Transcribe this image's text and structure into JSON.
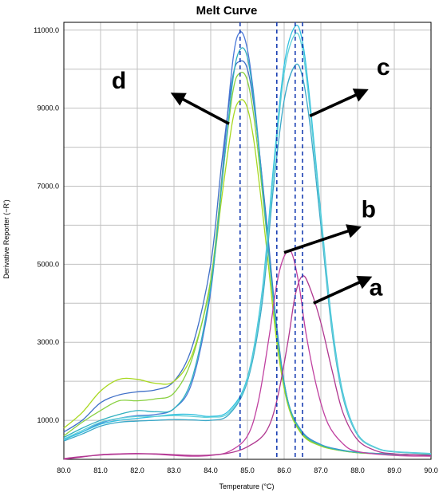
{
  "chart_data": {
    "type": "line",
    "title": "Melt Curve",
    "xlabel": "Temperature (°C)",
    "ylabel": "Derivative Reporter (−R')",
    "xlim": [
      80.0,
      90.0
    ],
    "ylim": [
      0,
      11200
    ],
    "x_ticks": [
      "80.0",
      "81.0",
      "82.0",
      "83.0",
      "84.0",
      "85.0",
      "86.0",
      "87.0",
      "88.0",
      "89.0",
      "90.0"
    ],
    "y_ticks": [
      "1000.0",
      "3000.0",
      "5000.0",
      "7000.0",
      "9000.0",
      "11000.0"
    ],
    "y_tick_values": [
      1000,
      3000,
      5000,
      7000,
      9000,
      11000
    ],
    "grid": true,
    "background_color": "#ffffff",
    "grid_color": "#c0c0c0",
    "dashed_line_color": "#1a3fb3",
    "annotation_arrow_color": "#000000",
    "vertical_dashed_lines": [
      84.8,
      85.8,
      86.3,
      86.5
    ],
    "series": [
      {
        "color": "#4a78d8",
        "points": [
          [
            80.0,
            520
          ],
          [
            80.5,
            700
          ],
          [
            81.0,
            930
          ],
          [
            81.5,
            1050
          ],
          [
            82.0,
            1120
          ],
          [
            82.5,
            1150
          ],
          [
            83.0,
            1300
          ],
          [
            83.5,
            2000
          ],
          [
            84.0,
            4300
          ],
          [
            84.3,
            7200
          ],
          [
            84.6,
            10200
          ],
          [
            84.8,
            10950
          ],
          [
            85.0,
            10500
          ],
          [
            85.2,
            9100
          ],
          [
            85.5,
            6200
          ],
          [
            85.8,
            3300
          ],
          [
            86.1,
            1500
          ],
          [
            86.5,
            700
          ],
          [
            87.0,
            380
          ],
          [
            87.5,
            250
          ],
          [
            88.0,
            180
          ],
          [
            89.0,
            130
          ],
          [
            90.0,
            110
          ]
        ]
      },
      {
        "color": "#4070c8",
        "points": [
          [
            80.0,
            700
          ],
          [
            80.5,
            1000
          ],
          [
            81.0,
            1450
          ],
          [
            81.5,
            1650
          ],
          [
            82.0,
            1730
          ],
          [
            82.5,
            1780
          ],
          [
            83.0,
            2000
          ],
          [
            83.5,
            2900
          ],
          [
            84.0,
            5000
          ],
          [
            84.3,
            7600
          ],
          [
            84.6,
            9800
          ],
          [
            84.8,
            10200
          ],
          [
            85.0,
            10000
          ],
          [
            85.2,
            8900
          ],
          [
            85.5,
            6300
          ],
          [
            85.8,
            3400
          ],
          [
            86.1,
            1500
          ],
          [
            86.5,
            650
          ],
          [
            87.0,
            360
          ],
          [
            87.5,
            240
          ],
          [
            88.0,
            170
          ],
          [
            89.0,
            130
          ],
          [
            90.0,
            110
          ]
        ]
      },
      {
        "color": "#a8d820",
        "points": [
          [
            80.0,
            800
          ],
          [
            80.5,
            1200
          ],
          [
            81.0,
            1750
          ],
          [
            81.5,
            2050
          ],
          [
            82.0,
            2050
          ],
          [
            82.5,
            1950
          ],
          [
            83.0,
            2000
          ],
          [
            83.5,
            2700
          ],
          [
            84.0,
            4500
          ],
          [
            84.3,
            6700
          ],
          [
            84.6,
            8700
          ],
          [
            84.8,
            9200
          ],
          [
            85.0,
            9000
          ],
          [
            85.2,
            8000
          ],
          [
            85.5,
            5600
          ],
          [
            85.8,
            3000
          ],
          [
            86.1,
            1400
          ],
          [
            86.5,
            620
          ],
          [
            87.0,
            340
          ],
          [
            87.5,
            230
          ],
          [
            88.0,
            170
          ],
          [
            89.0,
            130
          ],
          [
            90.0,
            110
          ]
        ]
      },
      {
        "color": "#88d040",
        "points": [
          [
            80.0,
            600
          ],
          [
            80.5,
            950
          ],
          [
            81.0,
            1250
          ],
          [
            81.5,
            1500
          ],
          [
            82.0,
            1500
          ],
          [
            82.5,
            1550
          ],
          [
            83.0,
            1700
          ],
          [
            83.5,
            2600
          ],
          [
            84.0,
            4600
          ],
          [
            84.3,
            7100
          ],
          [
            84.6,
            9400
          ],
          [
            84.8,
            9900
          ],
          [
            85.0,
            9700
          ],
          [
            85.2,
            8600
          ],
          [
            85.5,
            6000
          ],
          [
            85.8,
            3200
          ],
          [
            86.1,
            1450
          ],
          [
            86.5,
            640
          ],
          [
            87.0,
            350
          ],
          [
            87.5,
            230
          ],
          [
            88.0,
            170
          ],
          [
            89.0,
            130
          ],
          [
            90.0,
            110
          ]
        ]
      },
      {
        "color": "#30b0c0",
        "points": [
          [
            80.0,
            560
          ],
          [
            80.5,
            800
          ],
          [
            81.0,
            1000
          ],
          [
            81.5,
            1150
          ],
          [
            82.0,
            1250
          ],
          [
            82.5,
            1220
          ],
          [
            83.0,
            1300
          ],
          [
            83.5,
            2100
          ],
          [
            84.0,
            4400
          ],
          [
            84.3,
            7000
          ],
          [
            84.6,
            9700
          ],
          [
            84.8,
            10500
          ],
          [
            85.0,
            10300
          ],
          [
            85.2,
            9000
          ],
          [
            85.5,
            6100
          ],
          [
            85.8,
            3300
          ],
          [
            86.1,
            1500
          ],
          [
            86.5,
            680
          ],
          [
            87.0,
            370
          ],
          [
            87.5,
            240
          ],
          [
            88.0,
            180
          ],
          [
            89.0,
            130
          ],
          [
            90.0,
            110
          ]
        ]
      },
      {
        "color": "#30c0e0",
        "points": [
          [
            80.0,
            500
          ],
          [
            80.5,
            700
          ],
          [
            81.0,
            900
          ],
          [
            81.5,
            1000
          ],
          [
            82.0,
            1050
          ],
          [
            82.5,
            1100
          ],
          [
            83.0,
            1150
          ],
          [
            83.5,
            1150
          ],
          [
            84.0,
            1100
          ],
          [
            84.5,
            1250
          ],
          [
            85.0,
            2100
          ],
          [
            85.4,
            4300
          ],
          [
            85.7,
            7400
          ],
          [
            86.0,
            10100
          ],
          [
            86.3,
            11100
          ],
          [
            86.5,
            10700
          ],
          [
            86.7,
            9200
          ],
          [
            87.0,
            6300
          ],
          [
            87.3,
            3500
          ],
          [
            87.6,
            1700
          ],
          [
            88.0,
            650
          ],
          [
            88.5,
            300
          ],
          [
            89.0,
            200
          ],
          [
            90.0,
            150
          ]
        ]
      },
      {
        "color": "#3aa8c8",
        "points": [
          [
            80.0,
            470
          ],
          [
            80.5,
            650
          ],
          [
            81.0,
            850
          ],
          [
            81.5,
            950
          ],
          [
            82.0,
            980
          ],
          [
            82.5,
            1000
          ],
          [
            83.0,
            1020
          ],
          [
            83.5,
            1010
          ],
          [
            84.0,
            1000
          ],
          [
            84.5,
            1150
          ],
          [
            85.0,
            2000
          ],
          [
            85.4,
            4000
          ],
          [
            85.7,
            6900
          ],
          [
            86.0,
            9200
          ],
          [
            86.3,
            10100
          ],
          [
            86.5,
            9800
          ],
          [
            86.7,
            8600
          ],
          [
            87.0,
            6000
          ],
          [
            87.3,
            3300
          ],
          [
            87.6,
            1600
          ],
          [
            88.0,
            620
          ],
          [
            88.5,
            290
          ],
          [
            89.0,
            190
          ],
          [
            90.0,
            140
          ]
        ]
      },
      {
        "color": "#60d0d8",
        "points": [
          [
            80.0,
            520
          ],
          [
            80.5,
            740
          ],
          [
            81.0,
            950
          ],
          [
            81.5,
            1050
          ],
          [
            82.0,
            1100
          ],
          [
            82.5,
            1100
          ],
          [
            83.0,
            1120
          ],
          [
            83.5,
            1100
          ],
          [
            84.0,
            1080
          ],
          [
            84.5,
            1200
          ],
          [
            85.0,
            2050
          ],
          [
            85.4,
            4200
          ],
          [
            85.7,
            7200
          ],
          [
            86.0,
            9900
          ],
          [
            86.3,
            10900
          ],
          [
            86.5,
            10500
          ],
          [
            86.7,
            9000
          ],
          [
            87.0,
            6200
          ],
          [
            87.3,
            3400
          ],
          [
            87.6,
            1650
          ],
          [
            88.0,
            640
          ],
          [
            88.5,
            295
          ],
          [
            89.0,
            195
          ],
          [
            90.0,
            145
          ]
        ]
      },
      {
        "color": "#c040a0",
        "points": [
          [
            80.0,
            0
          ],
          [
            80.5,
            60
          ],
          [
            81.0,
            120
          ],
          [
            81.5,
            140
          ],
          [
            82.0,
            150
          ],
          [
            82.5,
            130
          ],
          [
            83.0,
            100
          ],
          [
            83.5,
            80
          ],
          [
            84.0,
            100
          ],
          [
            84.5,
            200
          ],
          [
            85.0,
            600
          ],
          [
            85.3,
            1500
          ],
          [
            85.6,
            3200
          ],
          [
            85.8,
            4500
          ],
          [
            86.0,
            5200
          ],
          [
            86.2,
            5300
          ],
          [
            86.4,
            4500
          ],
          [
            86.6,
            3200
          ],
          [
            86.9,
            1800
          ],
          [
            87.2,
            900
          ],
          [
            87.6,
            400
          ],
          [
            88.0,
            200
          ],
          [
            89.0,
            100
          ],
          [
            90.0,
            80
          ]
        ]
      },
      {
        "color": "#b03890",
        "points": [
          [
            80.0,
            20
          ],
          [
            80.5,
            70
          ],
          [
            81.0,
            110
          ],
          [
            81.5,
            130
          ],
          [
            82.0,
            140
          ],
          [
            82.5,
            140
          ],
          [
            83.0,
            120
          ],
          [
            83.5,
            100
          ],
          [
            84.0,
            110
          ],
          [
            84.5,
            160
          ],
          [
            85.0,
            320
          ],
          [
            85.5,
            700
          ],
          [
            85.8,
            1500
          ],
          [
            86.1,
            3000
          ],
          [
            86.3,
            4200
          ],
          [
            86.5,
            4700
          ],
          [
            86.7,
            4400
          ],
          [
            87.0,
            3500
          ],
          [
            87.3,
            2300
          ],
          [
            87.6,
            1200
          ],
          [
            88.0,
            500
          ],
          [
            88.5,
            220
          ],
          [
            89.0,
            140
          ],
          [
            90.0,
            100
          ]
        ]
      }
    ],
    "annotations": [
      {
        "label": "d",
        "text_x": 81.5,
        "text_y": 9500,
        "arrow_from": [
          84.5,
          8600
        ],
        "arrow_to": [
          83.1,
          9300
        ]
      },
      {
        "label": "c",
        "text_x": 88.7,
        "text_y": 9850,
        "arrow_from": [
          86.7,
          8800
        ],
        "arrow_to": [
          88.1,
          9400
        ]
      },
      {
        "label": "b",
        "text_x": 88.3,
        "text_y": 6200,
        "arrow_from": [
          86.0,
          5300
        ],
        "arrow_to": [
          87.9,
          5900
        ]
      },
      {
        "label": "a",
        "text_x": 88.5,
        "text_y": 4200,
        "arrow_from": [
          86.8,
          4000
        ],
        "arrow_to": [
          88.2,
          4600
        ]
      }
    ]
  }
}
